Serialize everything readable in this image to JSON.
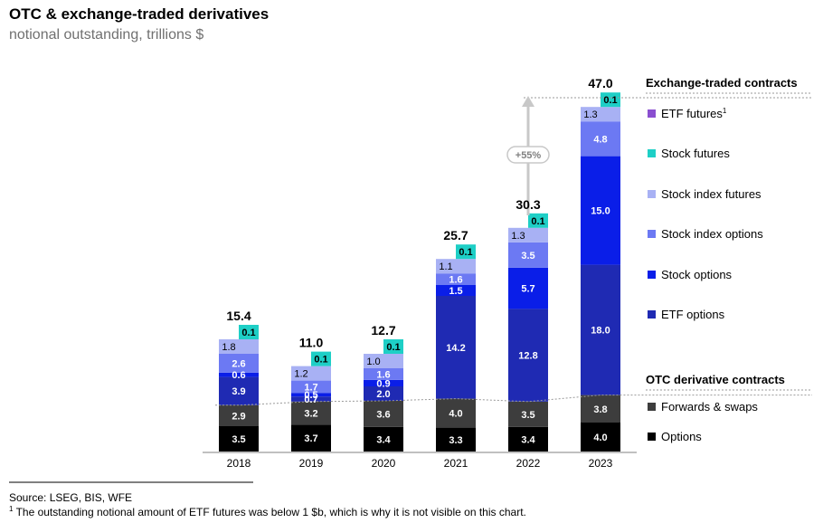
{
  "title": "OTC & exchange-traded derivatives",
  "subtitle": "notional outstanding, trillions $",
  "source": "Source: LSEG, BIS, WFE",
  "footnote": {
    "marker": "1",
    "text": " The outstanding notional amount of ETF futures was below 1 $b, which is why it is not visible on this chart."
  },
  "chart_data": {
    "type": "bar",
    "stacked": true,
    "categories": [
      "2018",
      "2019",
      "2020",
      "2021",
      "2022",
      "2023"
    ],
    "totals": [
      15.4,
      11.0,
      12.7,
      25.7,
      30.3,
      47.0
    ],
    "annotation": "+55%",
    "groups": [
      {
        "name": "Exchange-traded contracts",
        "series": [
          "ETF futures",
          "Stock futures",
          "Stock index futures",
          "Stock index options",
          "Stock options",
          "ETF options"
        ]
      },
      {
        "name": "OTC derivative contracts",
        "series": [
          "Forwards & swaps",
          "Options"
        ]
      }
    ],
    "series": [
      {
        "name": "Options",
        "color": "#000000",
        "values": [
          3.5,
          3.7,
          3.4,
          3.3,
          3.4,
          4.0
        ]
      },
      {
        "name": "Forwards & swaps",
        "color": "#3d3d3d",
        "values": [
          2.9,
          3.2,
          3.6,
          4.0,
          3.5,
          3.8
        ]
      },
      {
        "name": "ETF options",
        "color": "#1f2ab3",
        "values": [
          3.9,
          0.7,
          2.0,
          14.2,
          12.8,
          18.0
        ]
      },
      {
        "name": "Stock options",
        "color": "#0a1ee8",
        "values": [
          0.6,
          0.5,
          0.9,
          1.5,
          5.7,
          15.0
        ]
      },
      {
        "name": "Stock index options",
        "color": "#6c79f3",
        "values": [
          2.6,
          1.7,
          1.6,
          1.6,
          3.5,
          4.8
        ]
      },
      {
        "name": "Stock index futures",
        "color": "#a8b1f4",
        "values": [
          1.8,
          1.2,
          1.0,
          1.1,
          1.3,
          1.3
        ]
      },
      {
        "name": "Stock futures",
        "color": "#1ecfc6",
        "values": [
          0.1,
          0.1,
          0.1,
          0.1,
          0.1,
          0.1
        ]
      },
      {
        "name": "ETF futures",
        "color": "#8a4fd0",
        "values": [
          0,
          0,
          0,
          0,
          0,
          0
        ]
      }
    ],
    "legend_placement": "right",
    "grid": false
  }
}
